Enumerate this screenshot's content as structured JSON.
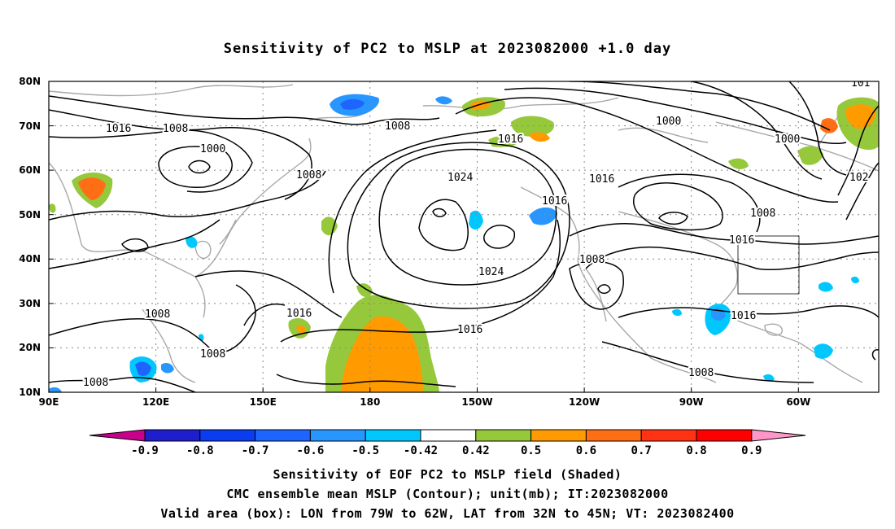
{
  "title": "Sensitivity of PC2 to MSLP at 2023082000 +1.0 day",
  "lat_labels": [
    "80N",
    "70N",
    "60N",
    "50N",
    "40N",
    "30N",
    "20N",
    "10N"
  ],
  "lon_labels": [
    "90E",
    "120E",
    "150E",
    "180",
    "150W",
    "120W",
    "90W",
    "60W"
  ],
  "contour_labels": [
    {
      "text": "1016"
    },
    {
      "text": "1008"
    },
    {
      "text": "1000"
    },
    {
      "text": "1008"
    },
    {
      "text": "1008"
    },
    {
      "text": "1016"
    },
    {
      "text": "1024"
    },
    {
      "text": "1016"
    },
    {
      "text": "1016"
    },
    {
      "text": "1000"
    },
    {
      "text": "1000"
    },
    {
      "text": "1008"
    },
    {
      "text": "1016"
    },
    {
      "text": "1024"
    },
    {
      "text": "1008"
    },
    {
      "text": "1008"
    },
    {
      "text": "1016"
    },
    {
      "text": "1016"
    },
    {
      "text": "1008"
    },
    {
      "text": "1008"
    },
    {
      "text": "1008"
    },
    {
      "text": "1016"
    },
    {
      "text": "101"
    },
    {
      "text": "102"
    }
  ],
  "colorbar": {
    "labels": [
      "-0.9",
      "-0.8",
      "-0.7",
      "-0.6",
      "-0.5",
      "-0.42",
      "0.42",
      "0.5",
      "0.6",
      "0.7",
      "0.8",
      "0.9"
    ],
    "colors": [
      "#c8008c",
      "#1e1ecc",
      "#0a3cf0",
      "#1e64ff",
      "#2896ff",
      "#00c8ff",
      "#ffffff",
      "#96c83c",
      "#ff9b00",
      "#ff6e14",
      "#ff3214",
      "#ff0000",
      "#ff96c8"
    ]
  },
  "caption": {
    "line1": "Sensitivity of EOF PC2 to MSLP field (Shaded)",
    "line2": "CMC ensemble mean MSLP (Contour); unit(mb); IT:2023082000",
    "line3": "Valid area (box): LON from 79W to 62W, LAT from 32N to 45N; VT: 2023082400"
  }
}
